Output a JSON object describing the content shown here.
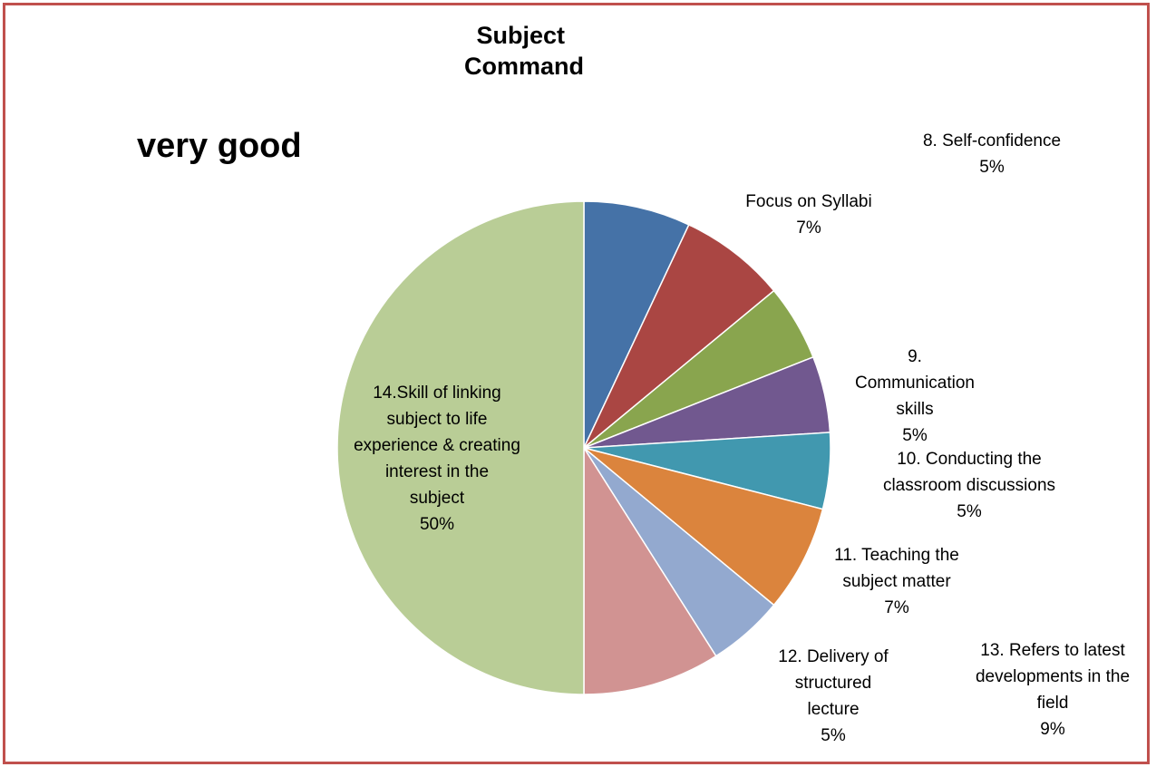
{
  "chart_data": {
    "type": "pie",
    "title": "Subject Command",
    "subtitle": "very good",
    "start_angle_deg": 0,
    "direction": "clockwise",
    "slices": [
      {
        "label": "",
        "value": 7,
        "value_label": "",
        "color": "#4572a7"
      },
      {
        "label": "Focus on Syllabi",
        "value": 7,
        "value_label": "7%",
        "color": "#aa4643"
      },
      {
        "label": "8. Self-confidence",
        "value": 5,
        "value_label": "5%",
        "color": "#89a54e"
      },
      {
        "label": "9. Communication skills",
        "value": 5,
        "value_label": "5%",
        "color": "#71588f"
      },
      {
        "label": "10. Conducting the classroom discussions",
        "value": 5,
        "value_label": "5%",
        "color": "#4198af"
      },
      {
        "label": "11. Teaching the subject matter",
        "value": 7,
        "value_label": "7%",
        "color": "#db843d"
      },
      {
        "label": "12. Delivery of structured lecture",
        "value": 5,
        "value_label": "5%",
        "color": "#93a9cf"
      },
      {
        "label": "13. Refers to latest developments in the field",
        "value": 9,
        "value_label": "9%",
        "color": "#d19392"
      },
      {
        "label": "14.Skill of linking subject to life experience & creating interest in the subject",
        "value": 50,
        "value_label": "50%",
        "color": "#b9cd96"
      }
    ]
  }
}
